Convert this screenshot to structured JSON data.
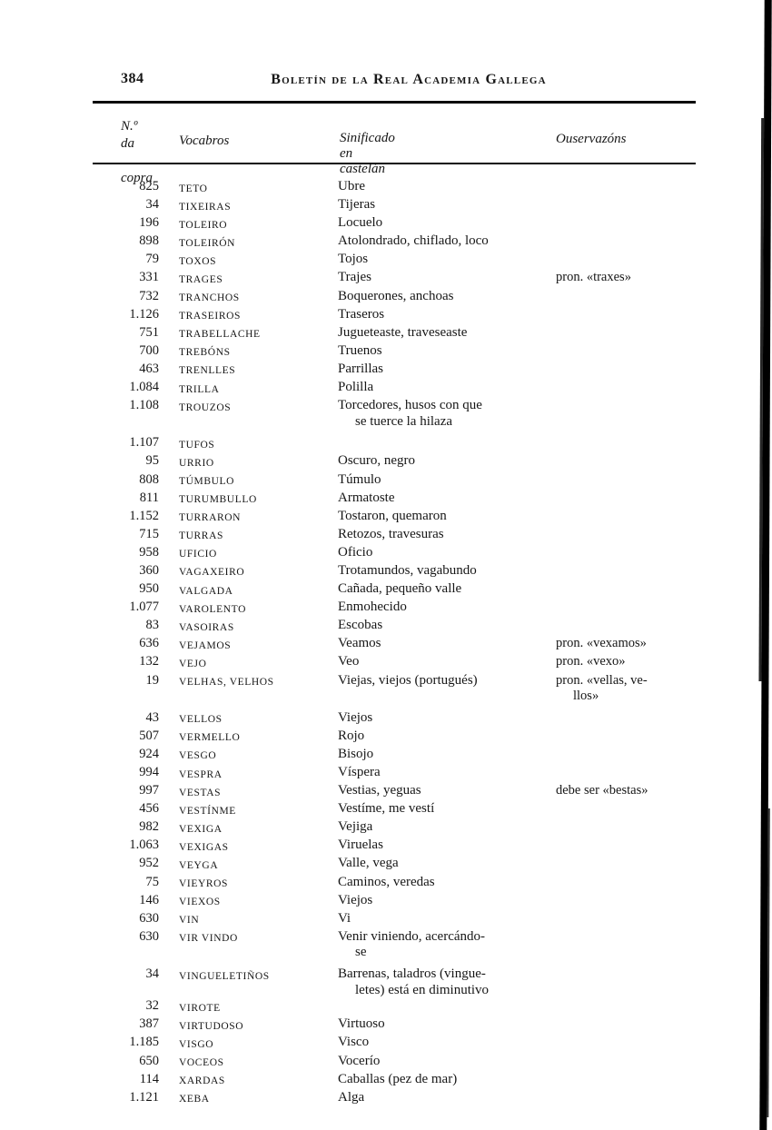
{
  "colors": {
    "ink": "#161616",
    "paper": "#ffffff",
    "scan_band": "#000000"
  },
  "page": {
    "number": "384",
    "running_title": "Boletín de la Real Academia Gallega"
  },
  "table": {
    "headers": {
      "num": "N.º da\n copra",
      "vocabros": "Vocabros",
      "meaning": "Sinificado en castelán",
      "observations": "Ouservazóns"
    },
    "rows": [
      {
        "num": "825",
        "vocabro": "TETO",
        "meaning": "Ubre",
        "obs": ""
      },
      {
        "num": "34",
        "vocabro": "TIXEIRAS",
        "meaning": "Tijeras",
        "obs": ""
      },
      {
        "num": "196",
        "vocabro": "TOLEIRO",
        "meaning": "Locuelo",
        "obs": ""
      },
      {
        "num": "898",
        "vocabro": "TOLEIRÓN",
        "meaning": "Atolondrado, chiflado, loco",
        "obs": ""
      },
      {
        "num": "79",
        "vocabro": "TOXOS",
        "meaning": "Tojos",
        "obs": ""
      },
      {
        "num": "331",
        "vocabro": "TRAGES",
        "meaning": "Trajes",
        "obs": "pron. «traxes»"
      },
      {
        "num": "732",
        "vocabro": "TRANCHOS",
        "meaning": "Boquerones, anchoas",
        "obs": ""
      },
      {
        "num": "1.126",
        "vocabro": "TRASEIROS",
        "meaning": "Traseros",
        "obs": ""
      },
      {
        "num": "751",
        "vocabro": "TRABELLACHE",
        "meaning": "Jugueteaste, traveseaste",
        "obs": ""
      },
      {
        "num": "700",
        "vocabro": "TREBÓNS",
        "meaning": "Truenos",
        "obs": ""
      },
      {
        "num": "463",
        "vocabro": "TRENLLES",
        "meaning": "Parrillas",
        "obs": ""
      },
      {
        "num": "1.084",
        "vocabro": "TRILLA",
        "meaning": "Polilla",
        "obs": ""
      },
      {
        "num": "1.108",
        "vocabro": "TROUZOS",
        "meaning": "Torcedores, husos con que\nse tuerce la hilaza",
        "obs": ""
      },
      {
        "num": "1.107",
        "vocabro": "TUFOS",
        "meaning": "",
        "obs": "",
        "gap_before": true
      },
      {
        "num": "95",
        "vocabro": "URRIO",
        "meaning": "Oscuro, negro",
        "obs": ""
      },
      {
        "num": "808",
        "vocabro": "TÚMBULO",
        "meaning": "Túmulo",
        "obs": ""
      },
      {
        "num": "811",
        "vocabro": "TURUMBULLO",
        "meaning": "Armatoste",
        "obs": ""
      },
      {
        "num": "1.152",
        "vocabro": "TURRARON",
        "meaning": "Tostaron, quemaron",
        "obs": ""
      },
      {
        "num": "715",
        "vocabro": "TURRAS",
        "meaning": "Retozos, travesuras",
        "obs": ""
      },
      {
        "num": "958",
        "vocabro": "UFICIO",
        "meaning": "Oficio",
        "obs": ""
      },
      {
        "num": "360",
        "vocabro": "VAGAXEIRO",
        "meaning": "Trotamundos, vagabundo",
        "obs": ""
      },
      {
        "num": "950",
        "vocabro": "VALGADA",
        "meaning": "Cañada, pequeño valle",
        "obs": ""
      },
      {
        "num": "1.077",
        "vocabro": "VAROLENTO",
        "meaning": "Enmohecido",
        "obs": ""
      },
      {
        "num": "83",
        "vocabro": "VASOIRAS",
        "meaning": "Escobas",
        "obs": ""
      },
      {
        "num": "636",
        "vocabro": "VEJAMOS",
        "meaning": "Veamos",
        "obs": "pron. «vexamos»"
      },
      {
        "num": "132",
        "vocabro": "VEJO",
        "meaning": "Veo",
        "obs": "pron. «vexo»"
      },
      {
        "num": "19",
        "vocabro": "VELHAS, VELHOS",
        "meaning": "Viejas, viejos (portugués)",
        "obs": "pron. «vellas, ve-\nllos»"
      },
      {
        "num": "43",
        "vocabro": "VELLOS",
        "meaning": "Viejos",
        "obs": "",
        "gap_before": true
      },
      {
        "num": "507",
        "vocabro": "VERMELLO",
        "meaning": "Rojo",
        "obs": ""
      },
      {
        "num": "924",
        "vocabro": "VESGO",
        "meaning": "Bisojo",
        "obs": ""
      },
      {
        "num": "994",
        "vocabro": "VESPRA",
        "meaning": "Víspera",
        "obs": ""
      },
      {
        "num": "997",
        "vocabro": "VESTAS",
        "meaning": "Vestias, yeguas",
        "obs": "debe ser «bestas»"
      },
      {
        "num": "456",
        "vocabro": "VESTÍNME",
        "meaning": "Vestíme, me vestí",
        "obs": ""
      },
      {
        "num": "982",
        "vocabro": "VEXIGA",
        "meaning": "Vejiga",
        "obs": ""
      },
      {
        "num": "1.063",
        "vocabro": "VEXIGAS",
        "meaning": "Viruelas",
        "obs": ""
      },
      {
        "num": "952",
        "vocabro": "VEYGA",
        "meaning": "Valle, vega",
        "obs": ""
      },
      {
        "num": "75",
        "vocabro": "VIEYROS",
        "meaning": "Caminos, veredas",
        "obs": ""
      },
      {
        "num": "146",
        "vocabro": "VIEXOS",
        "meaning": "Viejos",
        "obs": ""
      },
      {
        "num": "630",
        "vocabro": "VIN",
        "meaning": "Vi",
        "obs": ""
      },
      {
        "num": "630",
        "vocabro": "VIR VINDO",
        "meaning": "Venir viniendo, acercándo-\nse",
        "obs": ""
      },
      {
        "num": "34",
        "vocabro": "VINGUELETIÑOS",
        "meaning": "Barrenas, taladros (vingue-\nletes) está en diminutivo",
        "obs": "",
        "gap_before": true
      },
      {
        "num": "32",
        "vocabro": "VIROTE",
        "meaning": "",
        "obs": ""
      },
      {
        "num": "387",
        "vocabro": "VIRTUDOSO",
        "meaning": "Virtuoso",
        "obs": ""
      },
      {
        "num": "1.185",
        "vocabro": "VISGO",
        "meaning": "Visco",
        "obs": ""
      },
      {
        "num": "650",
        "vocabro": "VOCEOS",
        "meaning": "Vocerío",
        "obs": ""
      },
      {
        "num": "114",
        "vocabro": "XARDAS",
        "meaning": "Caballas (pez de mar)",
        "obs": ""
      },
      {
        "num": "1.121",
        "vocabro": "XEBA",
        "meaning": "Alga",
        "obs": ""
      }
    ]
  }
}
